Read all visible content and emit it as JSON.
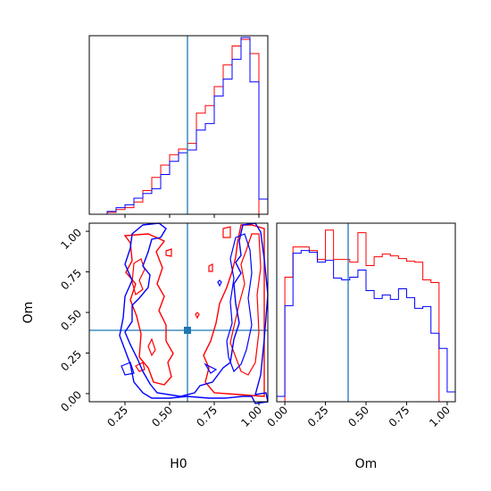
{
  "chart_data": {
    "type": "corner",
    "colors": {
      "series_a": "#ff0000",
      "series_b": "#0000ff",
      "truth": "#1f77b4",
      "frame": "#000000"
    },
    "truth": {
      "H0": 0.6,
      "Om": 0.39
    },
    "axes": {
      "H0": {
        "label": "H0",
        "range": [
          0.05,
          1.05
        ],
        "ticks": [
          0.25,
          0.5,
          0.75,
          1.0
        ],
        "tick_labels": [
          "0.25",
          "0.50",
          "0.75",
          "1.00"
        ]
      },
      "Om": {
        "label": "Om",
        "range": [
          -0.05,
          1.05
        ],
        "ticks": [
          0.0,
          0.25,
          0.5,
          0.75,
          1.0
        ],
        "tick_labels": [
          "0.00",
          "0.25",
          "0.50",
          "0.75",
          "1.00"
        ]
      }
    },
    "histograms": {
      "H0": {
        "bin_edges": [
          0.05,
          0.1,
          0.15,
          0.2,
          0.25,
          0.3,
          0.35,
          0.4,
          0.45,
          0.5,
          0.55,
          0.6,
          0.65,
          0.7,
          0.75,
          0.8,
          0.85,
          0.9,
          0.95,
          1.0,
          1.05
        ],
        "series": [
          {
            "color_key": "series_a",
            "counts": [
              0,
              0,
              0.2,
              0.5,
              0.7,
              1.3,
              2.5,
              3.9,
              5.2,
              6.3,
              6.9,
              7.5,
              10.7,
              11.5,
              13.5,
              15.8,
              17.8,
              18.5,
              17.0,
              0
            ]
          },
          {
            "color_key": "series_b",
            "counts": [
              0,
              0,
              0.3,
              0.7,
              1.0,
              1.7,
              2.2,
              2.7,
              4.2,
              5.6,
              6.5,
              6.8,
              8.9,
              9.6,
              12.5,
              14.3,
              16.4,
              18.7,
              14.0,
              1.6
            ]
          }
        ]
      },
      "Om": {
        "bin_edges": [
          -0.05,
          0.0,
          0.05,
          0.1,
          0.15,
          0.2,
          0.25,
          0.3,
          0.35,
          0.4,
          0.45,
          0.5,
          0.55,
          0.6,
          0.65,
          0.7,
          0.75,
          0.8,
          0.85,
          0.9,
          0.95,
          1.0,
          1.05
        ],
        "series": [
          {
            "color_key": "series_a",
            "counts": [
              0,
              14.0,
              17.4,
              17.4,
              17.0,
              16.0,
              19.3,
              16.0,
              16.0,
              15.7,
              19.0,
              15.3,
              16.3,
              16.6,
              16.4,
              16.1,
              15.8,
              15.7,
              13.7,
              13.4,
              0,
              0
            ]
          },
          {
            "color_key": "series_b",
            "counts": [
              0.6,
              10.8,
              16.7,
              17.0,
              16.8,
              15.7,
              15.9,
              13.9,
              13.7,
              14.0,
              14.8,
              12.5,
              11.6,
              12.0,
              11.5,
              12.7,
              11.7,
              10.5,
              10.7,
              7.7,
              6.0,
              1.1
            ]
          }
        ]
      }
    }
  }
}
